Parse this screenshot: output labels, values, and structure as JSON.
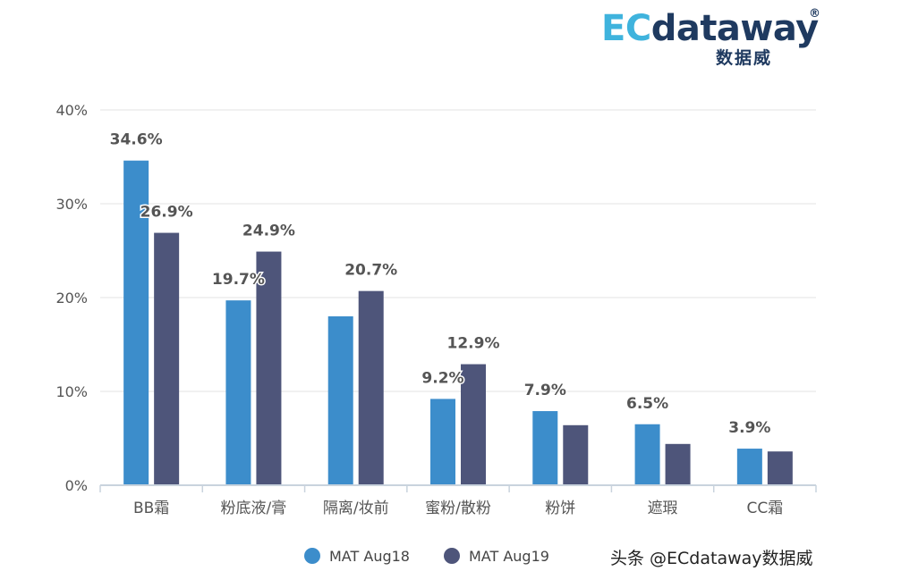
{
  "logo": {
    "ec": "EC",
    "rest": "dataway",
    "reg": "®",
    "sub": "数据威"
  },
  "watermark": "头条 @ECdataway数据威",
  "colors": {
    "series1": "#3c8dcb",
    "series2": "#4e557a",
    "grid": "#e3e3e3",
    "axis": "#c9d3dd",
    "tick_text": "#555555",
    "label_text": "#555555"
  },
  "chart_data": {
    "type": "bar",
    "categories": [
      "BB霜",
      "粉底液/膏",
      "隔离/妆前",
      "蜜粉/散粉",
      "粉饼",
      "遮瑕",
      "CC霜"
    ],
    "series": [
      {
        "name": "MAT Aug18",
        "values": [
          34.6,
          19.7,
          18.0,
          9.2,
          7.9,
          6.5,
          3.9
        ]
      },
      {
        "name": "MAT Aug19",
        "values": [
          26.9,
          24.9,
          20.7,
          12.9,
          6.4,
          4.4,
          3.6
        ]
      }
    ],
    "data_labels": [
      [
        "34.6%",
        "19.7%",
        "",
        "9.2%",
        "7.9%",
        "6.5%",
        "3.9%"
      ],
      [
        "26.9%",
        "24.9%",
        "20.7%",
        "12.9%",
        "",
        "",
        ""
      ]
    ],
    "y_ticks": [
      0,
      10,
      20,
      30,
      40
    ],
    "y_tick_labels": [
      "0%",
      "10%",
      "20%",
      "30%",
      "40%"
    ],
    "ylim": [
      0,
      40
    ],
    "grid": true,
    "legend_position": "bottom"
  }
}
